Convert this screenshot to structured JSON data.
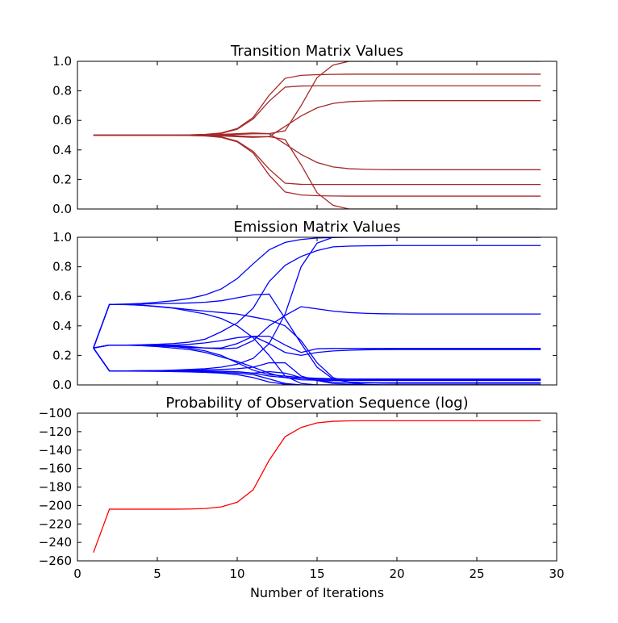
{
  "chart_data": [
    {
      "type": "line",
      "title": "Transition Matrix Values",
      "xlim": [
        0,
        30
      ],
      "ylim": [
        0.0,
        1.0
      ],
      "xticks": [
        0,
        5,
        10,
        15,
        20,
        25,
        30
      ],
      "yticks": [
        "0.0",
        "0.2",
        "0.4",
        "0.6",
        "0.8",
        "1.0"
      ],
      "show_xtick_labels": false,
      "color": "#a52a2a",
      "x": [
        1,
        2,
        3,
        4,
        5,
        6,
        7,
        8,
        9,
        10,
        11,
        12,
        13,
        14,
        15,
        16,
        17,
        18,
        19,
        20,
        21,
        22,
        23,
        24,
        25,
        26,
        27,
        28,
        29
      ],
      "series": [
        {
          "values": [
            0.5,
            0.5,
            0.5,
            0.5,
            0.5,
            0.5,
            0.502,
            0.505,
            0.515,
            0.545,
            0.62,
            0.77,
            0.885,
            0.905,
            0.91,
            0.912,
            0.913,
            0.913,
            0.913,
            0.913,
            0.913,
            0.913,
            0.913,
            0.913,
            0.913,
            0.913,
            0.913,
            0.913,
            0.913
          ]
        },
        {
          "values": [
            0.5,
            0.5,
            0.5,
            0.5,
            0.5,
            0.5,
            0.502,
            0.504,
            0.512,
            0.54,
            0.61,
            0.73,
            0.825,
            0.833,
            0.834,
            0.834,
            0.834,
            0.834,
            0.834,
            0.834,
            0.834,
            0.834,
            0.834,
            0.834,
            0.834,
            0.834,
            0.834,
            0.834,
            0.834
          ]
        },
        {
          "values": [
            0.5,
            0.5,
            0.5,
            0.5,
            0.5,
            0.5,
            0.5,
            0.502,
            0.505,
            0.51,
            0.515,
            0.51,
            0.53,
            0.7,
            0.89,
            0.975,
            1.0,
            1.0,
            1.0,
            1.0,
            1.0,
            1.0,
            1.0,
            1.0,
            1.0,
            1.0,
            1.0,
            1.0,
            1.0
          ]
        },
        {
          "values": [
            0.5,
            0.5,
            0.5,
            0.5,
            0.5,
            0.5,
            0.5,
            0.5,
            0.501,
            0.495,
            0.49,
            0.49,
            0.56,
            0.63,
            0.685,
            0.715,
            0.727,
            0.731,
            0.733,
            0.734,
            0.734,
            0.734,
            0.734,
            0.734,
            0.734,
            0.734,
            0.734,
            0.734,
            0.734
          ]
        },
        {
          "values": [
            0.5,
            0.5,
            0.5,
            0.5,
            0.5,
            0.5,
            0.5,
            0.5,
            0.499,
            0.505,
            0.51,
            0.51,
            0.44,
            0.37,
            0.315,
            0.285,
            0.273,
            0.269,
            0.267,
            0.266,
            0.266,
            0.266,
            0.266,
            0.266,
            0.266,
            0.266,
            0.266,
            0.266,
            0.266
          ]
        },
        {
          "values": [
            0.5,
            0.5,
            0.5,
            0.5,
            0.5,
            0.5,
            0.5,
            0.498,
            0.495,
            0.49,
            0.485,
            0.49,
            0.47,
            0.3,
            0.11,
            0.025,
            0.0,
            0.0,
            0.0,
            0.0,
            0.0,
            0.0,
            0.0,
            0.0,
            0.0,
            0.0,
            0.0,
            0.0,
            0.0
          ]
        },
        {
          "values": [
            0.5,
            0.5,
            0.5,
            0.5,
            0.5,
            0.5,
            0.498,
            0.496,
            0.488,
            0.46,
            0.39,
            0.27,
            0.175,
            0.167,
            0.166,
            0.166,
            0.166,
            0.166,
            0.166,
            0.166,
            0.166,
            0.166,
            0.166,
            0.166,
            0.166,
            0.166,
            0.166,
            0.166,
            0.166
          ]
        },
        {
          "values": [
            0.5,
            0.5,
            0.5,
            0.5,
            0.5,
            0.5,
            0.498,
            0.495,
            0.485,
            0.455,
            0.38,
            0.23,
            0.115,
            0.095,
            0.09,
            0.088,
            0.087,
            0.087,
            0.087,
            0.087,
            0.087,
            0.087,
            0.087,
            0.087,
            0.087,
            0.087,
            0.087,
            0.087,
            0.087
          ]
        }
      ]
    },
    {
      "type": "line",
      "title": "Emission Matrix Values",
      "xlim": [
        0,
        30
      ],
      "ylim": [
        0.0,
        1.0
      ],
      "xticks": [
        0,
        5,
        10,
        15,
        20,
        25,
        30
      ],
      "yticks": [
        "0.0",
        "0.2",
        "0.4",
        "0.6",
        "0.8",
        "1.0"
      ],
      "show_xtick_labels": false,
      "color": "#0000ff",
      "x": [
        1,
        2,
        3,
        4,
        5,
        6,
        7,
        8,
        9,
        10,
        11,
        12,
        13,
        14,
        15,
        16,
        17,
        18,
        19,
        20,
        21,
        22,
        23,
        24,
        25,
        26,
        27,
        28,
        29
      ],
      "series": [
        {
          "values": [
            0.25,
            0.545,
            0.548,
            0.552,
            0.56,
            0.57,
            0.585,
            0.61,
            0.65,
            0.72,
            0.82,
            0.915,
            0.965,
            0.985,
            0.995,
            0.998,
            1.0,
            1.0,
            1.0,
            1.0,
            1.0,
            1.0,
            1.0,
            1.0,
            1.0,
            1.0,
            1.0,
            1.0,
            1.0
          ]
        },
        {
          "values": [
            0.25,
            0.545,
            0.546,
            0.548,
            0.55,
            0.552,
            0.555,
            0.56,
            0.57,
            0.59,
            0.61,
            0.615,
            0.45,
            0.28,
            0.12,
            0.04,
            0.02,
            0.015,
            0.012,
            0.011,
            0.011,
            0.011,
            0.011,
            0.011,
            0.011,
            0.011,
            0.011,
            0.011,
            0.011
          ]
        },
        {
          "values": [
            0.25,
            0.545,
            0.545,
            0.54,
            0.53,
            0.52,
            0.5,
            0.48,
            0.45,
            0.4,
            0.32,
            0.2,
            0.06,
            0.01,
            0.0,
            0.0,
            0.0,
            0.0,
            0.0,
            0.0,
            0.0,
            0.0,
            0.0,
            0.0,
            0.0,
            0.0,
            0.0,
            0.0,
            0.0
          ]
        },
        {
          "values": [
            0.25,
            0.545,
            0.544,
            0.54,
            0.532,
            0.522,
            0.51,
            0.5,
            0.49,
            0.48,
            0.46,
            0.44,
            0.4,
            0.3,
            0.15,
            0.05,
            0.015,
            0.005,
            0.0,
            0.0,
            0.0,
            0.0,
            0.0,
            0.0,
            0.0,
            0.0,
            0.0,
            0.0,
            0.0
          ]
        },
        {
          "values": [
            0.25,
            0.27,
            0.27,
            0.272,
            0.275,
            0.28,
            0.29,
            0.31,
            0.36,
            0.42,
            0.52,
            0.7,
            0.81,
            0.87,
            0.91,
            0.935,
            0.94,
            0.942,
            0.943,
            0.944,
            0.944,
            0.944,
            0.944,
            0.944,
            0.944,
            0.944,
            0.944,
            0.944,
            0.944
          ]
        },
        {
          "values": [
            0.25,
            0.27,
            0.27,
            0.268,
            0.265,
            0.26,
            0.255,
            0.25,
            0.245,
            0.25,
            0.3,
            0.4,
            0.47,
            0.53,
            0.515,
            0.5,
            0.49,
            0.485,
            0.482,
            0.481,
            0.48,
            0.48,
            0.48,
            0.48,
            0.48,
            0.48,
            0.48,
            0.48,
            0.48
          ]
        },
        {
          "values": [
            0.25,
            0.27,
            0.27,
            0.27,
            0.268,
            0.266,
            0.26,
            0.25,
            0.25,
            0.28,
            0.33,
            0.33,
            0.27,
            0.22,
            0.245,
            0.247,
            0.247,
            0.247,
            0.247,
            0.247,
            0.247,
            0.247,
            0.247,
            0.247,
            0.247,
            0.247,
            0.247,
            0.247,
            0.247
          ]
        },
        {
          "values": [
            0.25,
            0.27,
            0.27,
            0.27,
            0.27,
            0.27,
            0.275,
            0.285,
            0.3,
            0.32,
            0.33,
            0.28,
            0.22,
            0.2,
            0.22,
            0.23,
            0.235,
            0.238,
            0.239,
            0.24,
            0.24,
            0.24,
            0.24,
            0.24,
            0.24,
            0.24,
            0.24,
            0.24,
            0.24
          ]
        },
        {
          "values": [
            0.25,
            0.27,
            0.27,
            0.268,
            0.265,
            0.26,
            0.25,
            0.23,
            0.2,
            0.15,
            0.1,
            0.07,
            0.06,
            0.05,
            0.045,
            0.042,
            0.04,
            0.04,
            0.04,
            0.04,
            0.04,
            0.04,
            0.04,
            0.04,
            0.04,
            0.04,
            0.04,
            0.04,
            0.04
          ]
        },
        {
          "values": [
            0.25,
            0.27,
            0.269,
            0.266,
            0.26,
            0.25,
            0.24,
            0.22,
            0.19,
            0.16,
            0.12,
            0.08,
            0.05,
            0.035,
            0.032,
            0.031,
            0.03,
            0.03,
            0.03,
            0.03,
            0.03,
            0.03,
            0.03,
            0.03,
            0.03,
            0.03,
            0.03,
            0.03,
            0.03
          ]
        },
        {
          "values": [
            0.25,
            0.095,
            0.095,
            0.096,
            0.097,
            0.1,
            0.105,
            0.11,
            0.12,
            0.14,
            0.18,
            0.28,
            0.48,
            0.8,
            0.96,
            1.0,
            1.0,
            1.0,
            1.0,
            1.0,
            1.0,
            1.0,
            1.0,
            1.0,
            1.0,
            1.0,
            1.0,
            1.0,
            1.0
          ]
        },
        {
          "values": [
            0.25,
            0.095,
            0.095,
            0.096,
            0.097,
            0.098,
            0.1,
            0.102,
            0.105,
            0.11,
            0.12,
            0.15,
            0.15,
            0.06,
            0.03,
            0.02,
            0.018,
            0.016,
            0.015,
            0.015,
            0.015,
            0.015,
            0.015,
            0.015,
            0.015,
            0.015,
            0.015,
            0.015,
            0.015
          ]
        },
        {
          "values": [
            0.25,
            0.095,
            0.095,
            0.095,
            0.095,
            0.095,
            0.095,
            0.094,
            0.093,
            0.09,
            0.08,
            0.06,
            0.05,
            0.045,
            0.04,
            0.038,
            0.037,
            0.036,
            0.036,
            0.036,
            0.036,
            0.036,
            0.036,
            0.036,
            0.036,
            0.036,
            0.036,
            0.036,
            0.036
          ]
        },
        {
          "values": [
            0.25,
            0.095,
            0.095,
            0.094,
            0.093,
            0.092,
            0.09,
            0.088,
            0.085,
            0.08,
            0.07,
            0.04,
            0.01,
            0.0,
            0.0,
            0.0,
            0.0,
            0.0,
            0.0,
            0.0,
            0.0,
            0.0,
            0.0,
            0.0,
            0.0,
            0.0,
            0.0,
            0.0,
            0.0
          ]
        },
        {
          "values": [
            0.25,
            0.095,
            0.094,
            0.093,
            0.092,
            0.09,
            0.088,
            0.085,
            0.08,
            0.07,
            0.05,
            0.02,
            0.005,
            0.0,
            0.0,
            0.0,
            0.0,
            0.0,
            0.0,
            0.0,
            0.0,
            0.0,
            0.0,
            0.0,
            0.0,
            0.0,
            0.0,
            0.0,
            0.0
          ]
        },
        {
          "values": [
            0.25,
            0.095,
            0.095,
            0.095,
            0.095,
            0.095,
            0.095,
            0.094,
            0.092,
            0.088,
            0.08,
            0.09,
            0.08,
            0.05,
            0.03,
            0.01,
            0.005,
            0.002,
            0.0,
            0.0,
            0.0,
            0.0,
            0.0,
            0.0,
            0.0,
            0.0,
            0.0,
            0.0,
            0.0
          ]
        }
      ]
    },
    {
      "type": "line",
      "title": "Probability of Observation Sequence (log)",
      "xlabel": "Number of Iterations",
      "xlim": [
        0,
        30
      ],
      "ylim": [
        -260,
        -100
      ],
      "xticks": [
        0,
        5,
        10,
        15,
        20,
        25,
        30
      ],
      "yticks": [
        "−260",
        "−240",
        "−220",
        "−200",
        "−180",
        "−160",
        "−140",
        "−120",
        "−100"
      ],
      "show_xtick_labels": true,
      "color": "#ff0000",
      "x": [
        1,
        2,
        3,
        4,
        5,
        6,
        7,
        8,
        9,
        10,
        11,
        12,
        13,
        14,
        15,
        16,
        17,
        18,
        19,
        20,
        21,
        22,
        23,
        24,
        25,
        26,
        27,
        28,
        29
      ],
      "series": [
        {
          "values": [
            -251,
            -204,
            -204,
            -204,
            -204,
            -204,
            -203.8,
            -203.3,
            -201.5,
            -196.5,
            -183,
            -151,
            -125.5,
            -115.5,
            -110.5,
            -108.8,
            -108.3,
            -108.2,
            -108.2,
            -108.2,
            -108.2,
            -108.2,
            -108.2,
            -108.2,
            -108.2,
            -108.2,
            -108.2,
            -108.2,
            -108.2
          ]
        }
      ]
    }
  ]
}
